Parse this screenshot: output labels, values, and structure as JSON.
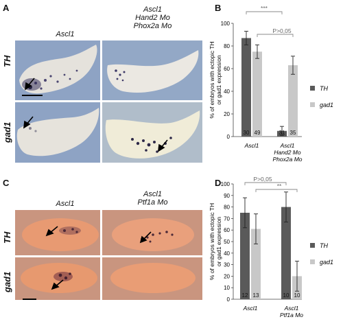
{
  "panels": {
    "A": {
      "letter": "A",
      "col1": "Ascl1",
      "col2_lines": [
        "Ascl1",
        "Hand2 Mo",
        "Phox2a Mo"
      ],
      "rows": [
        "TH",
        "gad1"
      ]
    },
    "B": {
      "letter": "B"
    },
    "C": {
      "letter": "C",
      "col1": "Ascl1",
      "col2_lines": [
        "Ascl1",
        "Ptf1a Mo"
      ],
      "rows": [
        "TH",
        "gad1"
      ]
    },
    "D": {
      "letter": "D"
    }
  },
  "colors": {
    "th_bar": "#5a5a5a",
    "gad1_bar": "#c8c8c8",
    "sig_line": "#8a8a8a",
    "blue_bg": "#8fa4c2",
    "embryo_light": "#e8e4d8",
    "orange_bg": "#c99580",
    "embryo_pink": "#e79872"
  },
  "chart_data": [
    {
      "type": "bar",
      "panel": "B",
      "categories": [
        "Ascl1",
        "Ascl1\nHand2 Mo\nPhox2a Mo"
      ],
      "category_lines": [
        [
          "Ascl1"
        ],
        [
          "Ascl1",
          "Hand2 Mo",
          "Phox2a Mo"
        ]
      ],
      "series": [
        {
          "name": "TH",
          "values": [
            87,
            5
          ],
          "errors": [
            6,
            4
          ],
          "n": [
            "30",
            "31"
          ]
        },
        {
          "name": "gad1",
          "values": [
            75,
            63
          ],
          "errors": [
            6,
            8
          ],
          "n": [
            "49",
            "35"
          ]
        }
      ],
      "ylabel_lines": [
        "% of embryos with ectopic TH",
        "or gad1 expression"
      ],
      "ylim": [
        0,
        100
      ],
      "yticks": [
        "0",
        "20",
        "40",
        "60",
        "80",
        "100"
      ],
      "legend_position": "right",
      "significance": [
        {
          "label": "***",
          "pair": "TH"
        },
        {
          "label": "P>0,05",
          "pair": "gad1"
        }
      ]
    },
    {
      "type": "bar",
      "panel": "D",
      "categories": [
        "Ascl1",
        "Ascl1\nPtf1a Mo"
      ],
      "category_lines": [
        [
          "Ascl1"
        ],
        [
          "Ascl1",
          "Ptf1a Mo"
        ]
      ],
      "series": [
        {
          "name": "TH",
          "values": [
            75,
            80
          ],
          "errors": [
            13,
            13
          ],
          "n": [
            "12",
            "10"
          ]
        },
        {
          "name": "gad1",
          "values": [
            61,
            20
          ],
          "errors": [
            13,
            13
          ],
          "n": [
            "13",
            "10"
          ]
        }
      ],
      "ylabel_lines": [
        "% of embryos with ectopic TH",
        "or gad1 expression"
      ],
      "ylim": [
        0,
        100
      ],
      "yticks": [
        "0",
        "10",
        "20",
        "30",
        "40",
        "50",
        "60",
        "70",
        "80",
        "90",
        "100"
      ],
      "legend_position": "right",
      "significance": [
        {
          "label": "P>0,05",
          "pair": "TH"
        },
        {
          "label": "**",
          "pair": "gad1"
        }
      ]
    }
  ]
}
